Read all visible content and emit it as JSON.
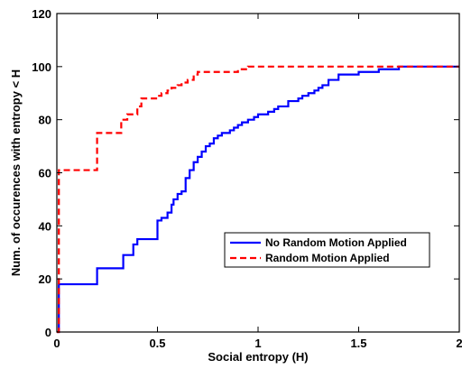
{
  "chart_data": {
    "type": "line",
    "xlabel": "Social entropy (H)",
    "ylabel": "Num. of occurences with entropy < H",
    "xlim": [
      0,
      2
    ],
    "ylim": [
      0,
      120
    ],
    "xticks": [
      "0",
      "0.5",
      "1",
      "1.5",
      "2"
    ],
    "yticks": [
      "0",
      "20",
      "40",
      "60",
      "80",
      "100",
      "120"
    ],
    "grid": false,
    "legend_position": "center-right",
    "series": [
      {
        "name": "No Random Motion Applied",
        "color": "#0000ff",
        "style": "solid",
        "step": true,
        "x": [
          0,
          0.01,
          0.2,
          0.33,
          0.38,
          0.4,
          0.5,
          0.52,
          0.55,
          0.57,
          0.58,
          0.6,
          0.62,
          0.64,
          0.66,
          0.68,
          0.7,
          0.72,
          0.74,
          0.76,
          0.78,
          0.8,
          0.82,
          0.86,
          0.88,
          0.9,
          0.92,
          0.95,
          0.98,
          1.0,
          1.05,
          1.08,
          1.1,
          1.15,
          1.2,
          1.22,
          1.25,
          1.28,
          1.3,
          1.32,
          1.35,
          1.4,
          1.5,
          1.6,
          1.7,
          2.0
        ],
        "y": [
          0,
          18,
          24,
          29,
          33,
          35,
          42,
          43,
          45,
          48,
          50,
          52,
          53,
          58,
          61,
          64,
          66,
          68,
          70,
          71,
          73,
          74,
          75,
          76,
          77,
          78,
          79,
          80,
          81,
          82,
          83,
          84,
          85,
          87,
          88,
          89,
          90,
          91,
          92,
          93,
          95,
          97,
          98,
          99,
          100,
          100
        ]
      },
      {
        "name": "Random Motion Applied",
        "color": "#ff0000",
        "style": "dashed",
        "step": true,
        "x": [
          0,
          0.01,
          0.2,
          0.32,
          0.35,
          0.4,
          0.42,
          0.5,
          0.52,
          0.55,
          0.57,
          0.6,
          0.62,
          0.65,
          0.68,
          0.7,
          0.75,
          0.9,
          0.95,
          1.0,
          1.1,
          1.3,
          1.4,
          1.6,
          2.0
        ],
        "y": [
          0,
          61,
          75,
          80,
          82,
          85,
          88,
          89,
          90,
          91,
          92,
          93,
          94,
          95,
          97,
          98,
          98,
          99,
          100,
          100,
          100,
          100,
          100,
          100,
          100
        ]
      }
    ]
  }
}
